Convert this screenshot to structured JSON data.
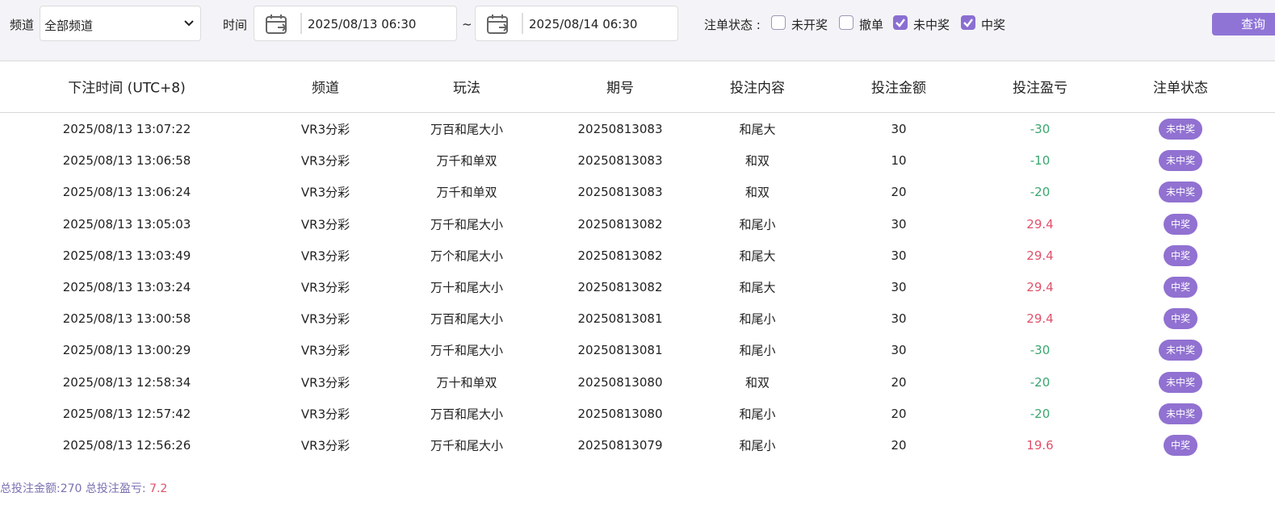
{
  "filters": {
    "channel_label": "频道",
    "channel_value": "全部频道",
    "time_label": "时间",
    "start_time": "2025/08/13 06:30",
    "separator": "~",
    "end_time": "2025/08/14 06:30",
    "status_label": "注单状态 :",
    "statuses": [
      {
        "label": "未开奖",
        "checked": false
      },
      {
        "label": "撤单",
        "checked": false
      },
      {
        "label": "未中奖",
        "checked": true
      },
      {
        "label": "中奖",
        "checked": true
      }
    ],
    "query_button": "查询"
  },
  "table": {
    "headers": [
      "下注时间 (UTC+8)",
      "频道",
      "玩法",
      "期号",
      "投注内容",
      "投注金额",
      "投注盈亏",
      "注单状态"
    ],
    "rows": [
      [
        "2025/08/13 13:07:22",
        "VR3分彩",
        "万百和尾大小",
        "20250813083",
        "和尾大",
        30,
        -30,
        "未中奖"
      ],
      [
        "2025/08/13 13:06:58",
        "VR3分彩",
        "万千和单双",
        "20250813083",
        "和双",
        10,
        -10,
        "未中奖"
      ],
      [
        "2025/08/13 13:06:24",
        "VR3分彩",
        "万千和单双",
        "20250813083",
        "和双",
        20,
        -20,
        "未中奖"
      ],
      [
        "2025/08/13 13:05:03",
        "VR3分彩",
        "万千和尾大小",
        "20250813082",
        "和尾小",
        30,
        29.4,
        "中奖"
      ],
      [
        "2025/08/13 13:03:49",
        "VR3分彩",
        "万个和尾大小",
        "20250813082",
        "和尾大",
        30,
        29.4,
        "中奖"
      ],
      [
        "2025/08/13 13:03:24",
        "VR3分彩",
        "万十和尾大小",
        "20250813082",
        "和尾大",
        30,
        29.4,
        "中奖"
      ],
      [
        "2025/08/13 13:00:58",
        "VR3分彩",
        "万百和尾大小",
        "20250813081",
        "和尾小",
        30,
        29.4,
        "中奖"
      ],
      [
        "2025/08/13 13:00:29",
        "VR3分彩",
        "万千和尾大小",
        "20250813081",
        "和尾小",
        30,
        -30,
        "未中奖"
      ],
      [
        "2025/08/13 12:58:34",
        "VR3分彩",
        "万十和单双",
        "20250813080",
        "和双",
        20,
        -20,
        "未中奖"
      ],
      [
        "2025/08/13 12:57:42",
        "VR3分彩",
        "万百和尾大小",
        "20250813080",
        "和尾小",
        20,
        -20,
        "未中奖"
      ],
      [
        "2025/08/13 12:56:26",
        "VR3分彩",
        "万千和尾大小",
        "20250813079",
        "和尾小",
        20,
        19.6,
        "中奖"
      ]
    ]
  },
  "footer": {
    "total_amount_label": "总投注金额:",
    "total_amount": 270,
    "total_profit_label": "总投注盈亏:",
    "total_profit": 7.2
  }
}
